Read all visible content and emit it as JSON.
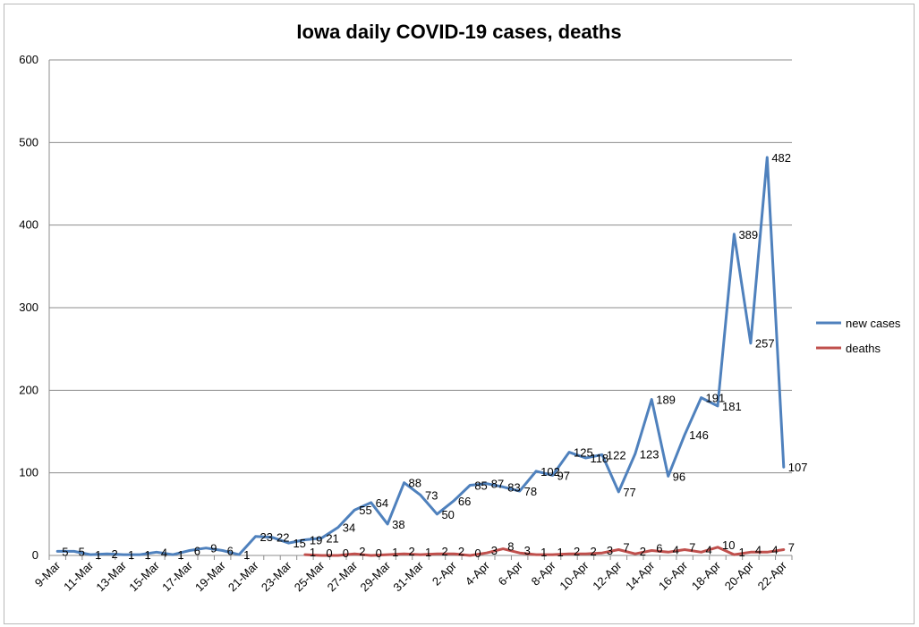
{
  "chart_data": {
    "type": "line",
    "title": "Iowa daily COVID-19 cases, deaths",
    "ylim": [
      0,
      600
    ],
    "yticks": [
      0,
      100,
      200,
      300,
      400,
      500,
      600
    ],
    "grid": true,
    "legend_position": "right",
    "x": [
      "9-Mar",
      "10-Mar",
      "11-Mar",
      "12-Mar",
      "13-Mar",
      "14-Mar",
      "15-Mar",
      "16-Mar",
      "17-Mar",
      "18-Mar",
      "19-Mar",
      "20-Mar",
      "21-Mar",
      "22-Mar",
      "23-Mar",
      "24-Mar",
      "25-Mar",
      "26-Mar",
      "27-Mar",
      "28-Mar",
      "29-Mar",
      "30-Mar",
      "31-Mar",
      "1-Apr",
      "2-Apr",
      "3-Apr",
      "4-Apr",
      "5-Apr",
      "6-Apr",
      "7-Apr",
      "8-Apr",
      "9-Apr",
      "10-Apr",
      "11-Apr",
      "12-Apr",
      "13-Apr",
      "14-Apr",
      "15-Apr",
      "16-Apr",
      "17-Apr",
      "18-Apr",
      "19-Apr",
      "20-Apr",
      "21-Apr",
      "22-Apr"
    ],
    "x_tick_labels": [
      "9-Mar",
      "11-Mar",
      "13-Mar",
      "15-Mar",
      "17-Mar",
      "19-Mar",
      "21-Mar",
      "23-Mar",
      "25-Mar",
      "27-Mar",
      "29-Mar",
      "31-Mar",
      "2-Apr",
      "4-Apr",
      "6-Apr",
      "8-Apr",
      "10-Apr",
      "12-Apr",
      "14-Apr",
      "16-Apr",
      "18-Apr",
      "20-Apr",
      "22-Apr"
    ],
    "series": [
      {
        "name": "new cases",
        "color": "#4f81bd",
        "values": [
          5,
          5,
          1,
          2,
          1,
          1,
          4,
          1,
          6,
          9,
          6,
          1,
          23,
          22,
          15,
          19,
          21,
          34,
          55,
          64,
          38,
          88,
          73,
          50,
          66,
          85,
          87,
          83,
          78,
          102,
          97,
          125,
          118,
          122,
          77,
          123,
          189,
          96,
          146,
          191,
          181,
          389,
          257,
          482,
          107
        ]
      },
      {
        "name": "deaths",
        "color": "#c0504d",
        "values": [
          null,
          null,
          null,
          null,
          null,
          null,
          null,
          null,
          null,
          null,
          null,
          null,
          null,
          null,
          null,
          1,
          0,
          0,
          2,
          0,
          1,
          2,
          1,
          2,
          2,
          0,
          3,
          8,
          3,
          1,
          1,
          2,
          2,
          3,
          7,
          2,
          6,
          4,
          7,
          4,
          10,
          1,
          4,
          4,
          7
        ]
      }
    ]
  }
}
